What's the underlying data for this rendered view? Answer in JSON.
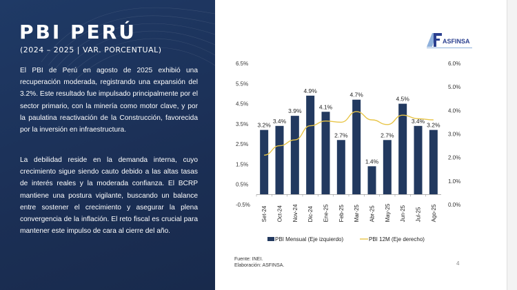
{
  "slide": {
    "title": "PBI PERÚ",
    "subtitle": "(2024 – 2025 | VAR. PORCENTUAL)",
    "paragraphs": [
      "El PBI de Perú en agosto de 2025 exhibió una recuperación moderada, registrando una expansión del 3.2%. Este resultado fue impulsado principalmente por el sector primario, con la minería como motor clave, y por la paulatina reactivación de la Construcción, favorecida por la inversión en infraestructura.",
      "La debilidad reside en la demanda interna, cuyo crecimiento sigue siendo cauto debido a las altas tasas de interés reales y la moderada confianza. El BCRP mantiene una postura vigilante, buscando un balance entre sostener el crecimiento y asegurar la plena convergencia de la inflación. El reto fiscal es crucial para mantener este impulso de cara al cierre del año."
    ],
    "logo_text": "ASFINSA",
    "source": "Fuente: INEI.",
    "elaboration": "Elaboración: ASFINSA.",
    "page_number": "4"
  },
  "chart_data": {
    "type": "bar",
    "categories": [
      "Set-24",
      "Oct-24",
      "Nov-24",
      "Dic-24",
      "Ene-25",
      "Feb-25",
      "Mar-25",
      "Abr-25",
      "May-25",
      "Jun-25",
      "Jul-25",
      "Ago-25"
    ],
    "series": [
      {
        "name": "PBI Mensual (Eje izquierdo)",
        "type": "bar",
        "axis": "left",
        "color": "#22395f",
        "values": [
          3.2,
          3.4,
          3.9,
          4.9,
          4.1,
          2.7,
          4.7,
          1.4,
          2.7,
          4.5,
          3.4,
          3.2
        ],
        "labels": [
          "3.2%",
          "3.4%",
          "3.9%",
          "4.9%",
          "4.1%",
          "2.7%",
          "4.7%",
          "1.4%",
          "2.7%",
          "4.5%",
          "3.4%",
          "3.2%"
        ]
      },
      {
        "name": "PBI 12M (Eje derecho)",
        "type": "line",
        "axis": "right",
        "color": "#e8c547",
        "values": [
          2.1,
          2.5,
          2.75,
          3.35,
          3.55,
          3.5,
          3.95,
          3.6,
          3.4,
          3.8,
          3.65,
          3.6
        ]
      }
    ],
    "left_axis": {
      "ticks": [
        "6.5%",
        "5.5%",
        "4.5%",
        "3.5%",
        "2.5%",
        "1.5%",
        "0.5%",
        "-0.5%"
      ],
      "range": [
        -0.5,
        6.5
      ]
    },
    "right_axis": {
      "ticks": [
        "6.0%",
        "5.0%",
        "4.0%",
        "3.0%",
        "2.0%",
        "1.0%",
        "0.0%"
      ],
      "range": [
        0,
        6
      ]
    },
    "legend": "bottom"
  }
}
